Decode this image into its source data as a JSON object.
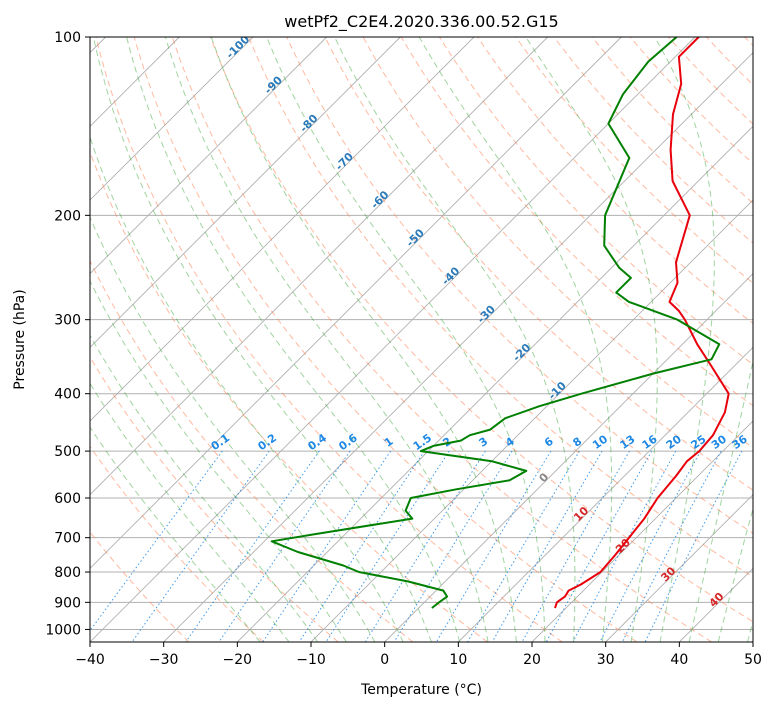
{
  "chart_data": {
    "type": "line",
    "title": "wetPf2_C2E4.2020.336.00.52.G15",
    "xlabel": "Temperature (°C)",
    "ylabel": "Pressure (hPa)",
    "xlim": [
      -40,
      50
    ],
    "ylim": [
      1050,
      100
    ],
    "y_scale": "log",
    "x_ticks": [
      -40,
      -30,
      -20,
      -10,
      0,
      10,
      20,
      30,
      40,
      50
    ],
    "y_ticks": [
      100,
      200,
      300,
      400,
      500,
      600,
      700,
      800,
      900,
      1000
    ],
    "grid": true,
    "skew": true,
    "colors": {
      "temperature": "#e8000b",
      "dewpoint": "#008000",
      "isotherm": "#b0b0b0",
      "dry_adiabat": "#ff7f50",
      "moist_adiabat": "#2ca02c",
      "mixing_ratio": "#1e88e5",
      "pressure_grid": "#b0b0b0"
    },
    "series": [
      {
        "name": "",
        "role": "temperature",
        "points": [
          [
            18.5,
            920
          ],
          [
            18.0,
            900
          ],
          [
            18.3,
            880
          ],
          [
            18.0,
            860
          ],
          [
            18.8,
            840
          ],
          [
            19.3,
            820
          ],
          [
            19.8,
            800
          ],
          [
            19.5,
            750
          ],
          [
            19.0,
            700
          ],
          [
            18.5,
            650
          ],
          [
            17.5,
            600
          ],
          [
            17.0,
            550
          ],
          [
            16.5,
            520
          ],
          [
            16.8,
            500
          ],
          [
            16.5,
            470
          ],
          [
            15.0,
            430
          ],
          [
            13.0,
            400
          ],
          [
            7.0,
            360
          ],
          [
            2.0,
            330
          ],
          [
            -3.0,
            300
          ],
          [
            -5.0,
            290
          ],
          [
            -7.5,
            280
          ],
          [
            -9.0,
            260
          ],
          [
            -12.0,
            240
          ],
          [
            -16.5,
            200
          ],
          [
            -23.5,
            175
          ],
          [
            -28.0,
            155
          ],
          [
            -32.5,
            135
          ],
          [
            -35.5,
            120
          ],
          [
            -39.5,
            108
          ],
          [
            -39.5,
            100
          ]
        ]
      },
      {
        "name": "",
        "role": "dewpoint",
        "points": [
          [
            1.8,
            920
          ],
          [
            2.0,
            900
          ],
          [
            2.3,
            880
          ],
          [
            1.0,
            860
          ],
          [
            -5.0,
            830
          ],
          [
            -13.0,
            800
          ],
          [
            -16.0,
            780
          ],
          [
            -24.0,
            740
          ],
          [
            -29.0,
            710
          ],
          [
            -24.0,
            690
          ],
          [
            -13.0,
            650
          ],
          [
            -15.0,
            630
          ],
          [
            -16.0,
            600
          ],
          [
            -11.0,
            580
          ],
          [
            -5.0,
            560
          ],
          [
            -4.0,
            540
          ],
          [
            -10.0,
            520
          ],
          [
            -21.0,
            500
          ],
          [
            -20.0,
            490
          ],
          [
            -17.0,
            480
          ],
          [
            -16.5,
            470
          ],
          [
            -14.5,
            460
          ],
          [
            -14.0,
            440
          ],
          [
            -11.0,
            420
          ],
          [
            -7.0,
            400
          ],
          [
            0.0,
            370
          ],
          [
            6.0,
            350
          ],
          [
            5.0,
            330
          ],
          [
            -4.0,
            300
          ],
          [
            -13.0,
            280
          ],
          [
            -16.0,
            270
          ],
          [
            -16.0,
            255
          ],
          [
            -19.0,
            245
          ],
          [
            -24.0,
            225
          ],
          [
            -28.0,
            200
          ],
          [
            -32.5,
            160
          ],
          [
            -40.0,
            140
          ],
          [
            -42.0,
            125
          ],
          [
            -43.0,
            110
          ],
          [
            -42.5,
            100
          ]
        ]
      }
    ],
    "moist_adiabat_labels": [
      "-100",
      "-90",
      "-80",
      "-70",
      "-60",
      "-50",
      "-40",
      "-30",
      "-20",
      "-10"
    ],
    "mixing_ratio_labels": [
      "0.1",
      "0.2",
      "0.4",
      "0.6",
      "1",
      "1.5",
      "2",
      "3",
      "4",
      "6",
      "8",
      "10",
      "13",
      "16",
      "20",
      "25",
      "30",
      "36"
    ],
    "dry_adiabat_labels": [
      "0",
      "10",
      "20",
      "30",
      "40"
    ]
  }
}
